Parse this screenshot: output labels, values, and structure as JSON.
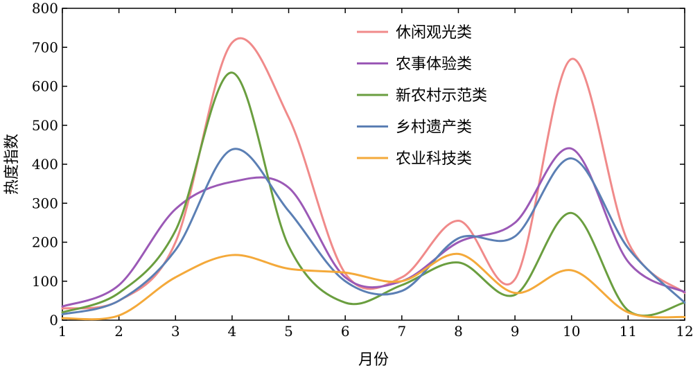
{
  "chart_data": {
    "type": "line",
    "xlabel": "月份",
    "ylabel": "热度指数",
    "xlim": [
      1,
      12
    ],
    "ylim": [
      0,
      800
    ],
    "x": [
      1,
      2,
      3,
      4,
      5,
      6,
      7,
      8,
      9,
      10,
      11,
      12
    ],
    "xticks": [
      "1",
      "2",
      "3",
      "4",
      "5",
      "6",
      "7",
      "8",
      "9",
      "10",
      "11",
      "12"
    ],
    "yticks": [
      "0",
      "100",
      "200",
      "300",
      "400",
      "500",
      "600",
      "700",
      "800"
    ],
    "grid": false,
    "legend_position": "top-right",
    "series": [
      {
        "name": "休闲观光类",
        "color": "#F08A8A",
        "values": [
          30,
          50,
          200,
          712,
          520,
          120,
          110,
          255,
          105,
          670,
          200,
          70
        ]
      },
      {
        "name": "农事体验类",
        "color": "#9B59B6",
        "values": [
          35,
          90,
          285,
          355,
          340,
          110,
          100,
          200,
          250,
          440,
          150,
          72
        ]
      },
      {
        "name": "新农村示范类",
        "color": "#6A9E3F",
        "values": [
          20,
          70,
          230,
          635,
          190,
          45,
          90,
          148,
          65,
          275,
          25,
          45
        ]
      },
      {
        "name": "乡村遗产类",
        "color": "#5B7FB4",
        "values": [
          15,
          50,
          180,
          438,
          280,
          100,
          75,
          210,
          215,
          415,
          185,
          45
        ]
      },
      {
        "name": "农业科技类",
        "color": "#F4A93A",
        "values": [
          5,
          12,
          110,
          167,
          132,
          122,
          100,
          170,
          70,
          128,
          20,
          8
        ]
      }
    ]
  }
}
